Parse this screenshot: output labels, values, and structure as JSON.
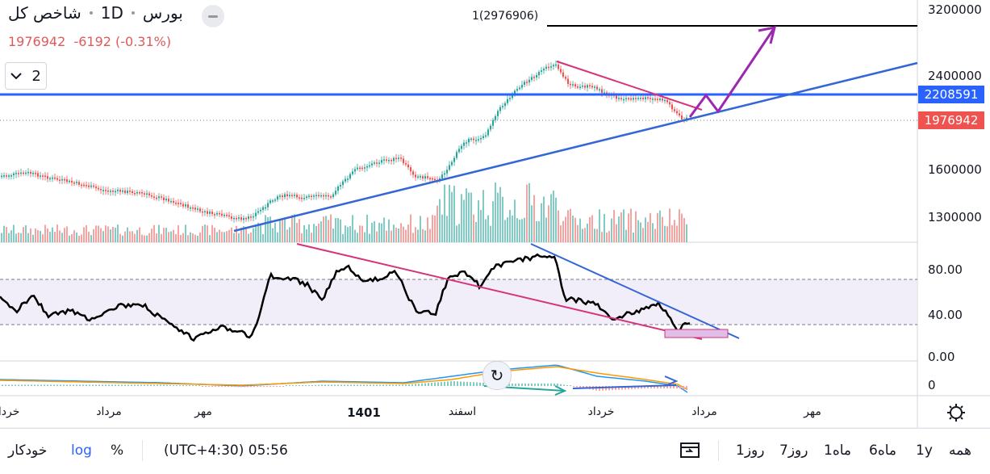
{
  "header": {
    "symbol": "بورس",
    "interval": "1D",
    "name": "شاخص کل",
    "last": "1976942",
    "change": "-6192 (-0.31%)",
    "panes_count": "2"
  },
  "annotation": {
    "target_label": "1(2976906)"
  },
  "price_axis": {
    "ticks": [
      "3200000",
      "2400000",
      "1600000",
      "1300000"
    ]
  },
  "price_badges": {
    "line_price": "2208591",
    "last_price": "1976942"
  },
  "indicator_axis": {
    "ticks": [
      "80.00",
      "40.00",
      "0.00"
    ]
  },
  "macd_axis": {
    "ticks": [
      "0"
    ]
  },
  "time_axis": {
    "labels": [
      "خرداد",
      "مرداد",
      "مهر",
      "1401",
      "اسفند",
      "خرداد",
      "مرداد",
      "مهر"
    ]
  },
  "bottom_bar": {
    "ranges": [
      "همه",
      "1y",
      "6ماه",
      "1ماه",
      "7روز",
      "1روز"
    ],
    "timezone_time": "(UTC+4:30) 05:56",
    "percent": "%",
    "log": "log",
    "auto": "خودکار"
  },
  "colors": {
    "up": "#26a69a",
    "down": "#ef5350",
    "trendline_blue": "#3466d6",
    "trendline_pink": "#d6337a",
    "arrow_purple": "#9c27b0",
    "last_badge": "#ef5350",
    "line_badge": "#2962ff"
  },
  "icons": {
    "settings": "gear-icon",
    "compare": "compare-icon",
    "refresh": "refresh-icon",
    "eye": "minus-icon",
    "chevron": "chevron-down-icon"
  }
}
